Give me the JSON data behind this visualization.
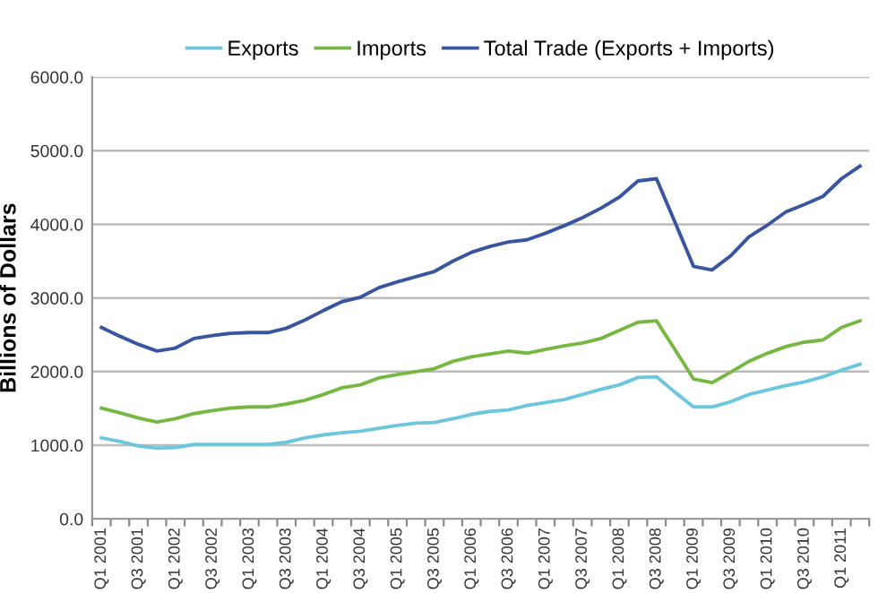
{
  "chart_data": {
    "type": "line",
    "ylabel": "Billions of Dollars",
    "categories": [
      "Q1 2001",
      null,
      "Q3 2001",
      null,
      "Q1 2002",
      null,
      "Q3 2002",
      null,
      "Q1 2003",
      null,
      "Q3 2003",
      null,
      "Q1 2004",
      null,
      "Q3 2004",
      null,
      "Q1 2005",
      null,
      "Q3 2005",
      null,
      "Q1 2006",
      null,
      "Q3 2006",
      null,
      "Q1 2007",
      null,
      "Q3 2007",
      null,
      "Q1 2008",
      null,
      "Q3 2008",
      null,
      "Q1 2009",
      null,
      "Q3 2009",
      null,
      "Q1 2010",
      null,
      "Q3 2010",
      null,
      "Q1 2011",
      null
    ],
    "series": [
      {
        "name": "Exports",
        "color": "#6cc6dc",
        "values": [
          1100,
          1050,
          990,
          960,
          970,
          1010,
          1010,
          1010,
          1010,
          1010,
          1040,
          1100,
          1140,
          1170,
          1190,
          1230,
          1270,
          1300,
          1310,
          1360,
          1420,
          1460,
          1480,
          1540,
          1580,
          1620,
          1690,
          1760,
          1820,
          1920,
          1930,
          1720,
          1520,
          1520,
          1590,
          1690,
          1750,
          1810,
          1860,
          1930,
          2020,
          2100
        ]
      },
      {
        "name": "Imports",
        "color": "#77b843",
        "values": [
          1505,
          1440,
          1370,
          1315,
          1360,
          1430,
          1470,
          1505,
          1520,
          1520,
          1560,
          1610,
          1690,
          1780,
          1820,
          1915,
          1960,
          2000,
          2040,
          2140,
          2200,
          2240,
          2280,
          2250,
          2300,
          2350,
          2390,
          2450,
          2560,
          2670,
          2690,
          2300,
          1900,
          1850,
          1990,
          2140,
          2250,
          2340,
          2400,
          2430,
          2600,
          2690
        ]
      },
      {
        "name": "Total Trade (Exports + Imports)",
        "color": "#3a559f",
        "values": [
          2600,
          2480,
          2370,
          2280,
          2320,
          2450,
          2490,
          2520,
          2530,
          2530,
          2590,
          2700,
          2830,
          2950,
          3010,
          3140,
          3220,
          3290,
          3360,
          3500,
          3620,
          3700,
          3760,
          3790,
          3880,
          3980,
          4090,
          4220,
          4370,
          4590,
          4620,
          4030,
          3430,
          3380,
          3570,
          3830,
          3990,
          4170,
          4270,
          4380,
          4620,
          4790
        ]
      }
    ],
    "ylim": [
      0,
      6000
    ],
    "yticks": [
      {
        "value": 0,
        "label": "0.0"
      },
      {
        "value": 1000,
        "label": "1000.0"
      },
      {
        "value": 2000,
        "label": "2000.0"
      },
      {
        "value": 3000,
        "label": "3000.0"
      },
      {
        "value": 4000,
        "label": "4000.0"
      },
      {
        "value": 5000,
        "label": "5000.0"
      },
      {
        "value": 6000,
        "label": "6000.0"
      }
    ],
    "grid": "y",
    "legend": "top",
    "marker": "none",
    "line_style": "solid"
  }
}
